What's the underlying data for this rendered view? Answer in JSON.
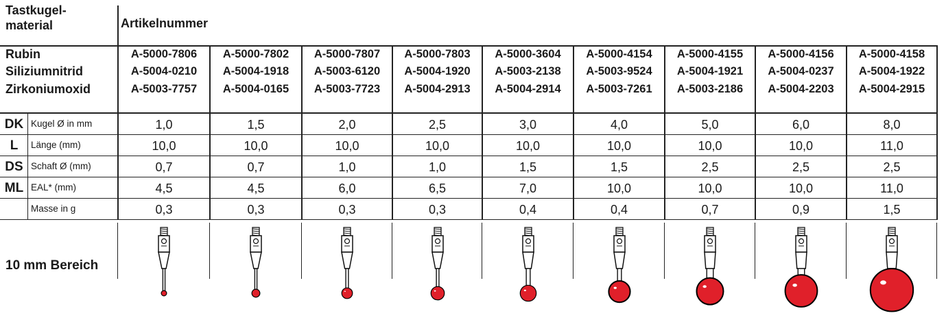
{
  "header": {
    "material_label": "Tastkugel-\nmaterial",
    "article_label": "Artikelnummer"
  },
  "materials": [
    {
      "name": "Rubin",
      "articles": [
        "A-5000-7806",
        "A-5000-7802",
        "A-5000-7807",
        "A-5000-7803",
        "A-5000-3604",
        "A-5000-4154",
        "A-5000-4155",
        "A-5000-4156",
        "A-5000-4158"
      ]
    },
    {
      "name": "Siliziumnitrid",
      "articles": [
        "A-5004-0210",
        "A-5004-1918",
        "A-5003-6120",
        "A-5004-1920",
        "A-5003-2138",
        "A-5003-9524",
        "A-5004-1921",
        "A-5004-0237",
        "A-5004-1922"
      ]
    },
    {
      "name": "Zirkoniumoxid",
      "articles": [
        "A-5003-7757",
        "A-5004-0165",
        "A-5003-7723",
        "A-5004-2913",
        "A-5004-2914",
        "A-5003-7261",
        "A-5003-2186",
        "A-5004-2203",
        "A-5004-2915"
      ]
    }
  ],
  "params": [
    {
      "abbr": "DK",
      "label": "Kugel Ø in mm",
      "values": [
        "1,0",
        "1,5",
        "2,0",
        "2,5",
        "3,0",
        "4,0",
        "5,0",
        "6,0",
        "8,0"
      ]
    },
    {
      "abbr": "L",
      "label": "Länge (mm)",
      "values": [
        "10,0",
        "10,0",
        "10,0",
        "10,0",
        "10,0",
        "10,0",
        "10,0",
        "10,0",
        "11,0"
      ]
    },
    {
      "abbr": "DS",
      "label": "Schaft Ø (mm)",
      "values": [
        "0,7",
        "0,7",
        "1,0",
        "1,0",
        "1,5",
        "1,5",
        "2,5",
        "2,5",
        "2,5"
      ]
    },
    {
      "abbr": "ML",
      "label": "EAL* (mm)",
      "values": [
        "4,5",
        "4,5",
        "6,0",
        "6,5",
        "7,0",
        "10,0",
        "10,0",
        "10,0",
        "11,0"
      ]
    },
    {
      "abbr": "",
      "label": "Masse in g",
      "values": [
        "0,3",
        "0,3",
        "0,3",
        "0,3",
        "0,4",
        "0,4",
        "0,7",
        "0,9",
        "1,5"
      ]
    }
  ],
  "bereich_label": "10 mm Bereich",
  "colors": {
    "ball": "#e0202a",
    "ball_dark": "#b0101a",
    "line": "#222222",
    "text": "#1a1a1a"
  }
}
